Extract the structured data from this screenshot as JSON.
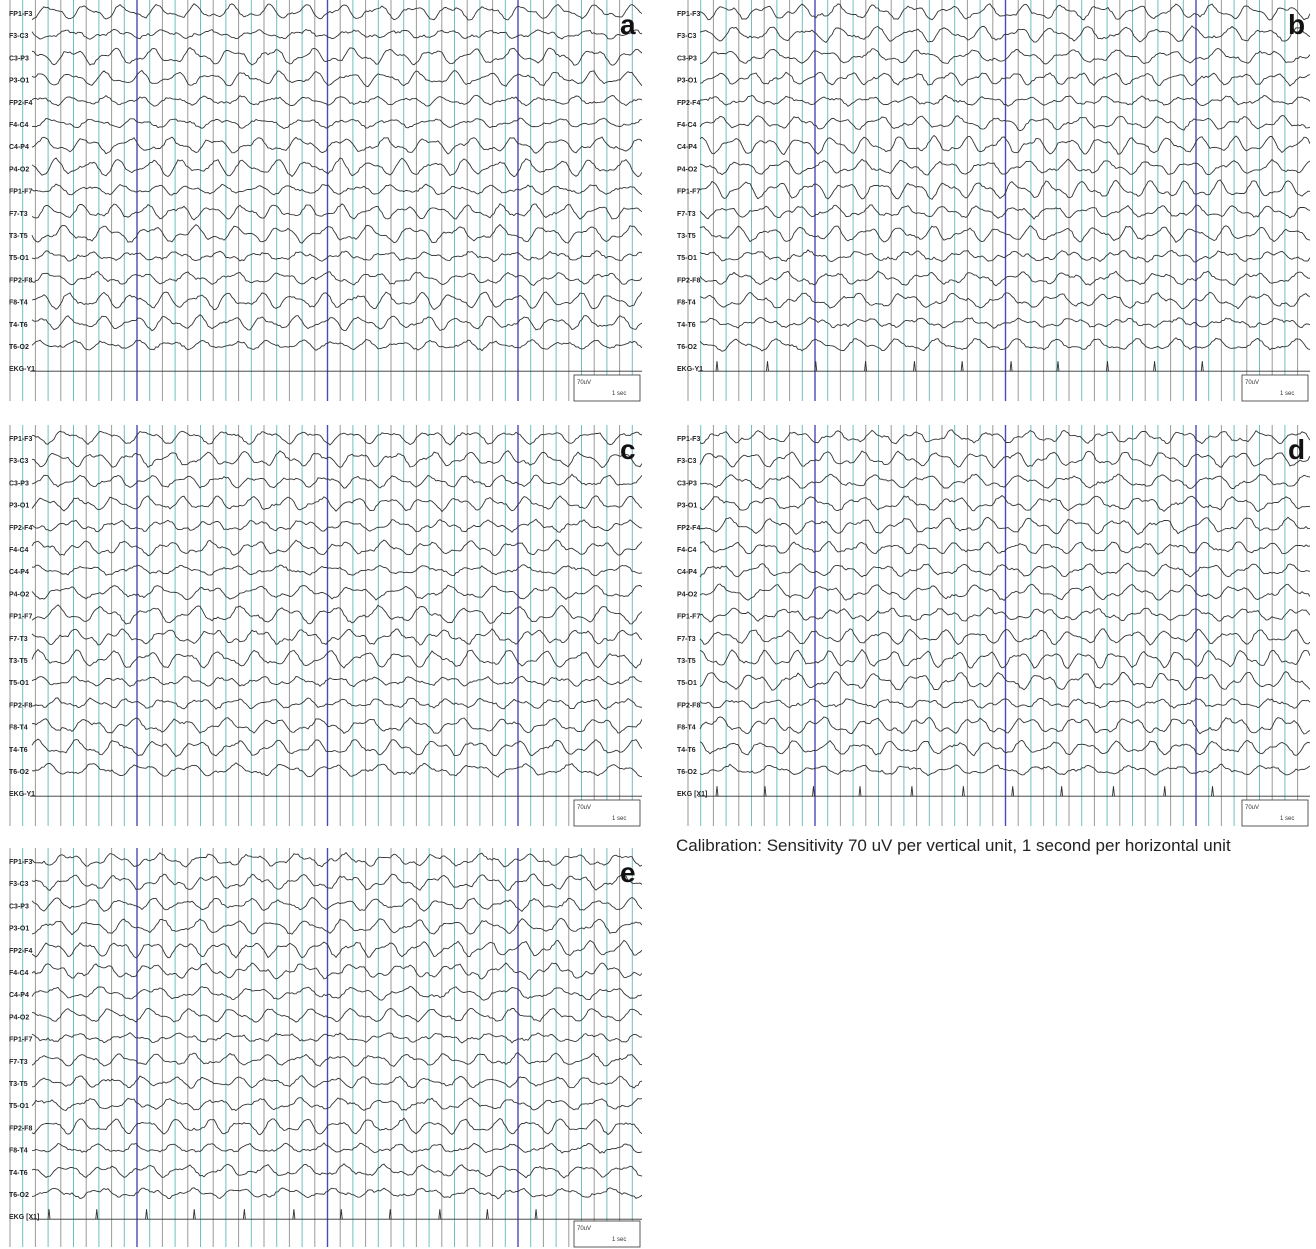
{
  "montage": [
    "FP1-F3",
    "F3-C3",
    "C3-P3",
    "P3-O1",
    "FP2-F4",
    "F4-C4",
    "C4-P4",
    "P4-O2",
    "FP1-F7",
    "F7-T3",
    "T3-T5",
    "T5-O1",
    "FP2-F8",
    "F8-T4",
    "T4-T6",
    "T6-O2"
  ],
  "panels": [
    {
      "letter": "a",
      "ekg": "EKG-Y1"
    },
    {
      "letter": "b",
      "ekg": "EKG-Y1"
    },
    {
      "letter": "c",
      "ekg": "EKG-Y1"
    },
    {
      "letter": "d",
      "ekg": "EKG [X1]"
    },
    {
      "letter": "e",
      "ekg": "EKG [X1]"
    }
  ],
  "calibration": {
    "amplitude": "70uV",
    "time": "1 sec",
    "caption": "Calibration: Sensitivity 70 uV per vertical unit, 1 second per horizontal unit"
  }
}
